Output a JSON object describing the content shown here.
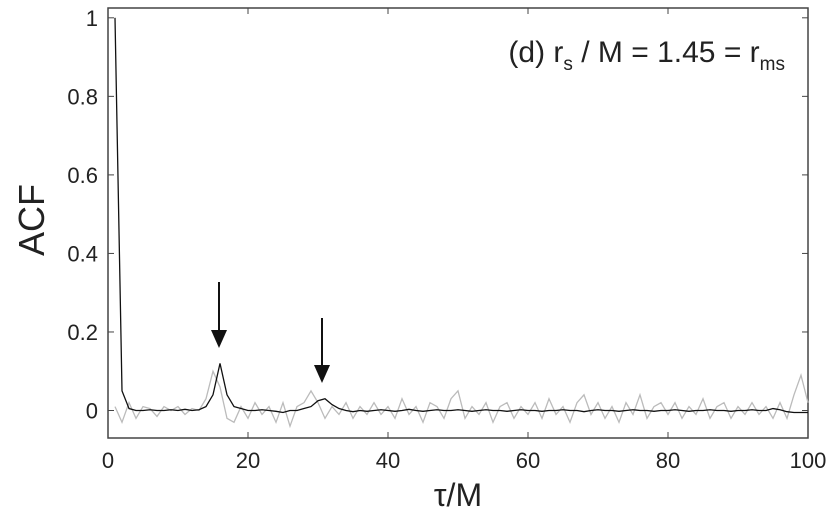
{
  "chart_data": {
    "type": "line",
    "annotation": [
      "(d) r",
      "s",
      " / M = 1.45 = r",
      "ms"
    ],
    "xlabel": "τ/M",
    "ylabel": "ACF",
    "x": [
      1,
      2,
      3,
      4,
      5,
      6,
      7,
      8,
      9,
      10,
      11,
      12,
      13,
      14,
      15,
      16,
      17,
      18,
      19,
      20,
      21,
      22,
      23,
      24,
      25,
      26,
      27,
      28,
      29,
      30,
      31,
      32,
      33,
      34,
      35,
      36,
      37,
      38,
      39,
      40,
      41,
      42,
      43,
      44,
      45,
      46,
      47,
      48,
      49,
      50,
      51,
      52,
      53,
      54,
      55,
      56,
      57,
      58,
      59,
      60,
      61,
      62,
      63,
      64,
      65,
      66,
      67,
      68,
      69,
      70,
      71,
      72,
      73,
      74,
      75,
      76,
      77,
      78,
      79,
      80,
      81,
      82,
      83,
      84,
      85,
      86,
      87,
      88,
      89,
      90,
      91,
      92,
      93,
      94,
      95,
      96,
      97,
      98,
      99,
      100
    ],
    "series": [
      {
        "color": "#bbbbbb",
        "values": [
          0.01,
          -0.03,
          0.02,
          -0.02,
          0.01,
          0.005,
          -0.015,
          0.01,
          0.0,
          0.01,
          -0.01,
          0.005,
          0,
          0.03,
          0.1,
          0.06,
          -0.02,
          -0.03,
          0.01,
          -0.02,
          0.02,
          -0.01,
          0.01,
          -0.03,
          0.02,
          -0.04,
          0.01,
          0.02,
          0.05,
          0.02,
          -0.02,
          0.01,
          -0.01,
          0.02,
          -0.02,
          0.01,
          -0.01,
          0.02,
          -0.01,
          0.01,
          -0.02,
          0.03,
          -0.01,
          0.01,
          -0.03,
          0.02,
          0.01,
          -0.02,
          0.03,
          0.05,
          -0.02,
          0.01,
          -0.01,
          0.02,
          -0.03,
          0.01,
          0.02,
          -0.02,
          0.01,
          -0.01,
          0.02,
          -0.02,
          0.03,
          -0.01,
          0.01,
          -0.03,
          0.02,
          0.04,
          -0.01,
          0.02,
          -0.02,
          0.01,
          -0.03,
          0.02,
          -0.01,
          0.04,
          -0.02,
          0.01,
          0.02,
          -0.01,
          0.02,
          -0.02,
          0.01,
          -0.01,
          0.03,
          -0.02,
          0.01,
          0.02,
          -0.02,
          0.01,
          -0.01,
          0.02,
          -0.01,
          0.01,
          -0.02,
          0.02,
          -0.02,
          0.04,
          0.09,
          0.02
        ]
      },
      {
        "color": "#111111",
        "values": [
          1.0,
          0.05,
          0.005,
          0,
          0,
          0.002,
          0,
          0,
          0.002,
          0,
          0.003,
          0,
          0.002,
          0.01,
          0.04,
          0.12,
          0.04,
          0.01,
          0.005,
          0,
          0,
          0.002,
          0,
          -0.002,
          -0.005,
          0,
          0,
          0.005,
          0.01,
          0.025,
          0.03,
          0.015,
          0.005,
          0,
          -0.003,
          0,
          -0.002,
          0,
          0.002,
          0,
          -0.002,
          0,
          0.003,
          0,
          -0.002,
          0,
          0.002,
          0,
          0,
          0.002,
          0,
          -0.002,
          0,
          0.002,
          0,
          0,
          -0.002,
          0,
          0.002,
          0,
          0,
          -0.002,
          0,
          0,
          0.002,
          0,
          0,
          -0.003,
          0,
          0.002,
          0,
          0,
          -0.002,
          0,
          0.002,
          0,
          0,
          -0.002,
          0,
          0,
          0.002,
          0,
          -0.002,
          0,
          0,
          0.002,
          0,
          0,
          -0.002,
          0,
          0,
          0.002,
          0,
          0,
          0.005,
          0.002,
          -0.003,
          -0.005,
          -0.005,
          -0.005
        ]
      }
    ],
    "xlim": [
      0,
      100
    ],
    "xticks": [
      0,
      20,
      40,
      60,
      80,
      100
    ],
    "ylim": [
      -0.07,
      1.025
    ],
    "yticks": [
      0,
      0.2,
      0.4,
      0.6,
      0.8,
      1
    ]
  }
}
